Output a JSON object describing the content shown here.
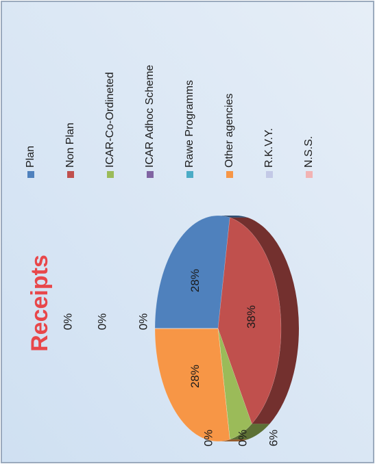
{
  "chart_data": {
    "type": "pie",
    "title": "Receipts",
    "categories": [
      "Plan",
      "Non Plan",
      "ICAR-Co-Ordineted",
      "ICAR Adhoc Scheme",
      "Rawe Programms",
      "Other agencies",
      "R.K.V.Y.",
      "N.S.S.",
      null
    ],
    "values": [
      28,
      38,
      6,
      0,
      0,
      28,
      0,
      0,
      0
    ],
    "value_labels": [
      "28%",
      "38%",
      "6%",
      "0%",
      "0%",
      "28%",
      "0%",
      "0%",
      "0%"
    ],
    "colors": [
      "#4f81bd",
      "#c0504d",
      "#9bbb59",
      "#8064a2",
      "#4bacc6",
      "#f79646",
      "#c3c9e6",
      "#f2b3b3",
      "#a6a6a6"
    ],
    "legend": "right"
  }
}
